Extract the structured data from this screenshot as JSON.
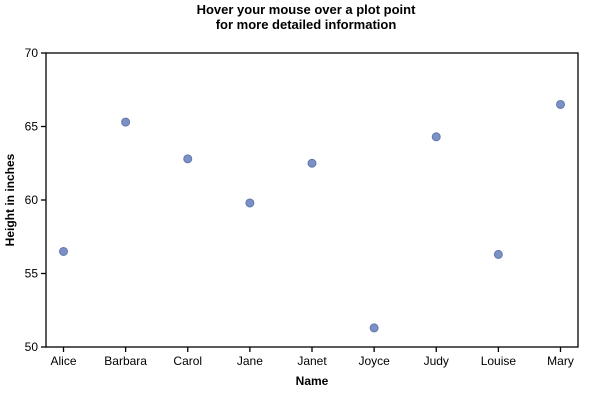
{
  "title": {
    "line1": "Hover your mouse over a plot point",
    "line2": "for more detailed information"
  },
  "chart_data": {
    "type": "scatter",
    "categories": [
      "Alice",
      "Barbara",
      "Carol",
      "Jane",
      "Janet",
      "Joyce",
      "Judy",
      "Louise",
      "Mary"
    ],
    "values": [
      56.5,
      65.3,
      62.8,
      59.8,
      62.5,
      51.3,
      64.3,
      56.3,
      66.5
    ],
    "xlabel": "Name",
    "ylabel": "Height in inches",
    "ylim": [
      50,
      70
    ],
    "yticks": [
      50,
      55,
      60,
      65,
      70
    ],
    "grid": false,
    "frame": true,
    "legend": "none",
    "marker_color": "#7B90C4",
    "marker_edge_color": "#6379AE",
    "axis_color": "#000000"
  }
}
